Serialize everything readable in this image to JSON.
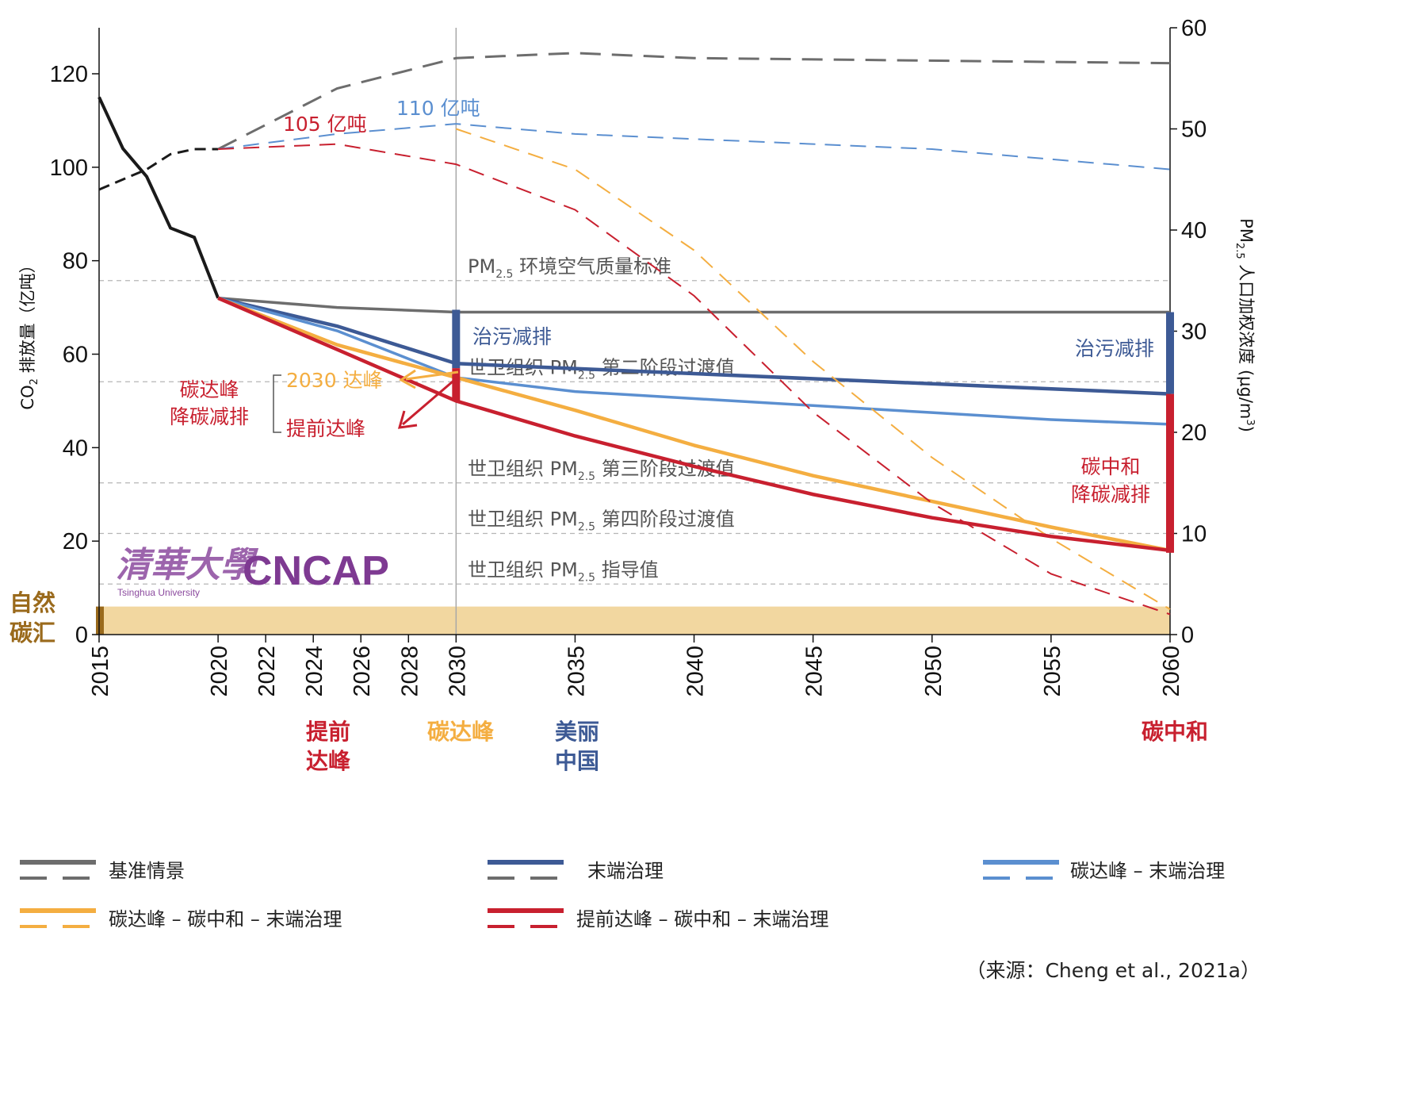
{
  "chart_data": {
    "type": "line",
    "x_ticks": [
      2015,
      2020,
      2022,
      2024,
      2026,
      2028,
      2030,
      2035,
      2040,
      2045,
      2050,
      2055,
      2060
    ],
    "x_range": [
      2015,
      2060
    ],
    "y_left": {
      "label_prefix": "CO",
      "label_sub": "2",
      "label_rest": " 排放量（亿吨）",
      "range": [
        0,
        120
      ],
      "ticks": [
        0,
        20,
        40,
        60,
        80,
        100,
        120
      ]
    },
    "y_right": {
      "label_prefix": "PM",
      "label_sub": "2.5",
      "label_rest": " 人口加权浓度 (μg/m",
      "label_sup": "3",
      "label_end": ")",
      "range": [
        0,
        60
      ],
      "ticks": [
        0,
        10,
        20,
        30,
        40,
        50,
        60
      ]
    },
    "colors": {
      "baseline": "#6d6d6d",
      "end_of_pipe": "#3d5a95",
      "peak_eop": "#5b8fd0",
      "peak_neutral_eop": "#f4ae41",
      "early_peak_neutral_eop": "#c8202f",
      "history": "#1a1a1a",
      "sink": "#f2d7a0",
      "sink_mark": "#9a6a1c"
    },
    "history_co2": {
      "x": [
        2015,
        2016,
        2017,
        2018,
        2019,
        2020
      ],
      "y": [
        115,
        104,
        98,
        87,
        85,
        72
      ]
    },
    "history_pm": {
      "x": [
        2015,
        2016,
        2017,
        2018,
        2019,
        2020
      ],
      "y": [
        44,
        45,
        46,
        47.5,
        48,
        48
      ]
    },
    "series": [
      {
        "name": "基准情景",
        "key": "baseline",
        "co2": {
          "x": [
            2020,
            2025,
            2030,
            2060
          ],
          "y": [
            72,
            70,
            69,
            69
          ]
        },
        "pm": {
          "x": [
            2020,
            2025,
            2030,
            2035,
            2040,
            2060
          ],
          "y": [
            48,
            54,
            57,
            57.5,
            57,
            56.5
          ]
        }
      },
      {
        "name": "末端治理",
        "key": "end_of_pipe",
        "co2": {
          "x": [
            2020,
            2025,
            2030,
            2060
          ],
          "y": [
            72,
            66,
            58,
            51.5
          ]
        },
        "pm": null
      },
      {
        "name": "碳达峰 – 末端治理",
        "key": "peak_eop",
        "co2": {
          "x": [
            2020,
            2025,
            2030,
            2035,
            2040,
            2045,
            2050,
            2055,
            2060
          ],
          "y": [
            72,
            65,
            55,
            52,
            50.5,
            49,
            47.5,
            46,
            45
          ]
        },
        "pm": {
          "x": [
            2020,
            2025,
            2030,
            2035,
            2040,
            2045,
            2050,
            2055,
            2060
          ],
          "y": [
            48,
            49.5,
            50.5,
            49.5,
            49,
            48.5,
            48,
            47,
            46
          ]
        }
      },
      {
        "name": "碳达峰 – 碳中和 – 末端治理",
        "key": "peak_neutral_eop",
        "co2": {
          "x": [
            2020,
            2025,
            2030,
            2035,
            2040,
            2045,
            2050,
            2055,
            2060
          ],
          "y": [
            72,
            62,
            55,
            48,
            40.5,
            34,
            28.5,
            23,
            18
          ]
        },
        "pm": {
          "x": [
            2030,
            2035,
            2040,
            2045,
            2050,
            2055,
            2060
          ],
          "y": [
            50,
            46,
            38,
            27,
            17.5,
            9.5,
            2.5
          ]
        }
      },
      {
        "name": "提前达峰 – 碳中和 – 末端治理",
        "key": "early_peak_neutral_eop",
        "co2": {
          "x": [
            2020,
            2025,
            2030,
            2035,
            2040,
            2045,
            2050,
            2055,
            2060
          ],
          "y": [
            72,
            61,
            50,
            42.5,
            36,
            30,
            25,
            21,
            18
          ]
        },
        "pm": {
          "x": [
            2020,
            2025,
            2030,
            2035,
            2040,
            2045,
            2050,
            2055,
            2060
          ],
          "y": [
            48,
            48.5,
            46.5,
            42,
            33.5,
            22,
            13,
            6,
            2
          ]
        }
      }
    ],
    "pm_standards": [
      {
        "value": 35,
        "prefix": "PM",
        "sub": "2.5",
        "text": " 环境空气质量标准"
      },
      {
        "value": 25,
        "prefix": "世卫组织 PM",
        "sub": "2.5",
        "text": " 第二阶段过渡值"
      },
      {
        "value": 15,
        "prefix": "世卫组织 PM",
        "sub": "2.5",
        "text": " 第三阶段过渡值"
      },
      {
        "value": 10,
        "prefix": "世卫组织 PM",
        "sub": "2.5",
        "text": " 第四阶段过渡值"
      },
      {
        "value": 5,
        "prefix": "世卫组织 PM",
        "sub": "2.5",
        "text": " 指导值"
      }
    ],
    "natural_sink": {
      "label_line1": "自然",
      "label_line2": "碳汇",
      "value": 6
    },
    "annotations": {
      "peak_105": "105 亿吨",
      "peak_110": "110 亿吨",
      "pollution_reduction": "治污减排",
      "peak_carbon_reduction_l1": "碳达峰",
      "peak_carbon_reduction_l2": "降碳减排",
      "peak_2030": "2030 达峰",
      "early_peak": "提前达峰",
      "neutral_reduction_l1": "碳中和",
      "neutral_reduction_l2": "降碳减排"
    },
    "milestones": {
      "early_peak_l1": "提前",
      "early_peak_l2": "达峰",
      "carbon_peak": "碳达峰",
      "beautiful_china_l1": "美丽",
      "beautiful_china_l2": "中国",
      "carbon_neutral": "碳中和"
    },
    "logo": {
      "cn": "清華大學",
      "en": "Tsinghua University",
      "brand": "CNCAP"
    },
    "source": "（来源：Cheng et al., 2021a）"
  }
}
